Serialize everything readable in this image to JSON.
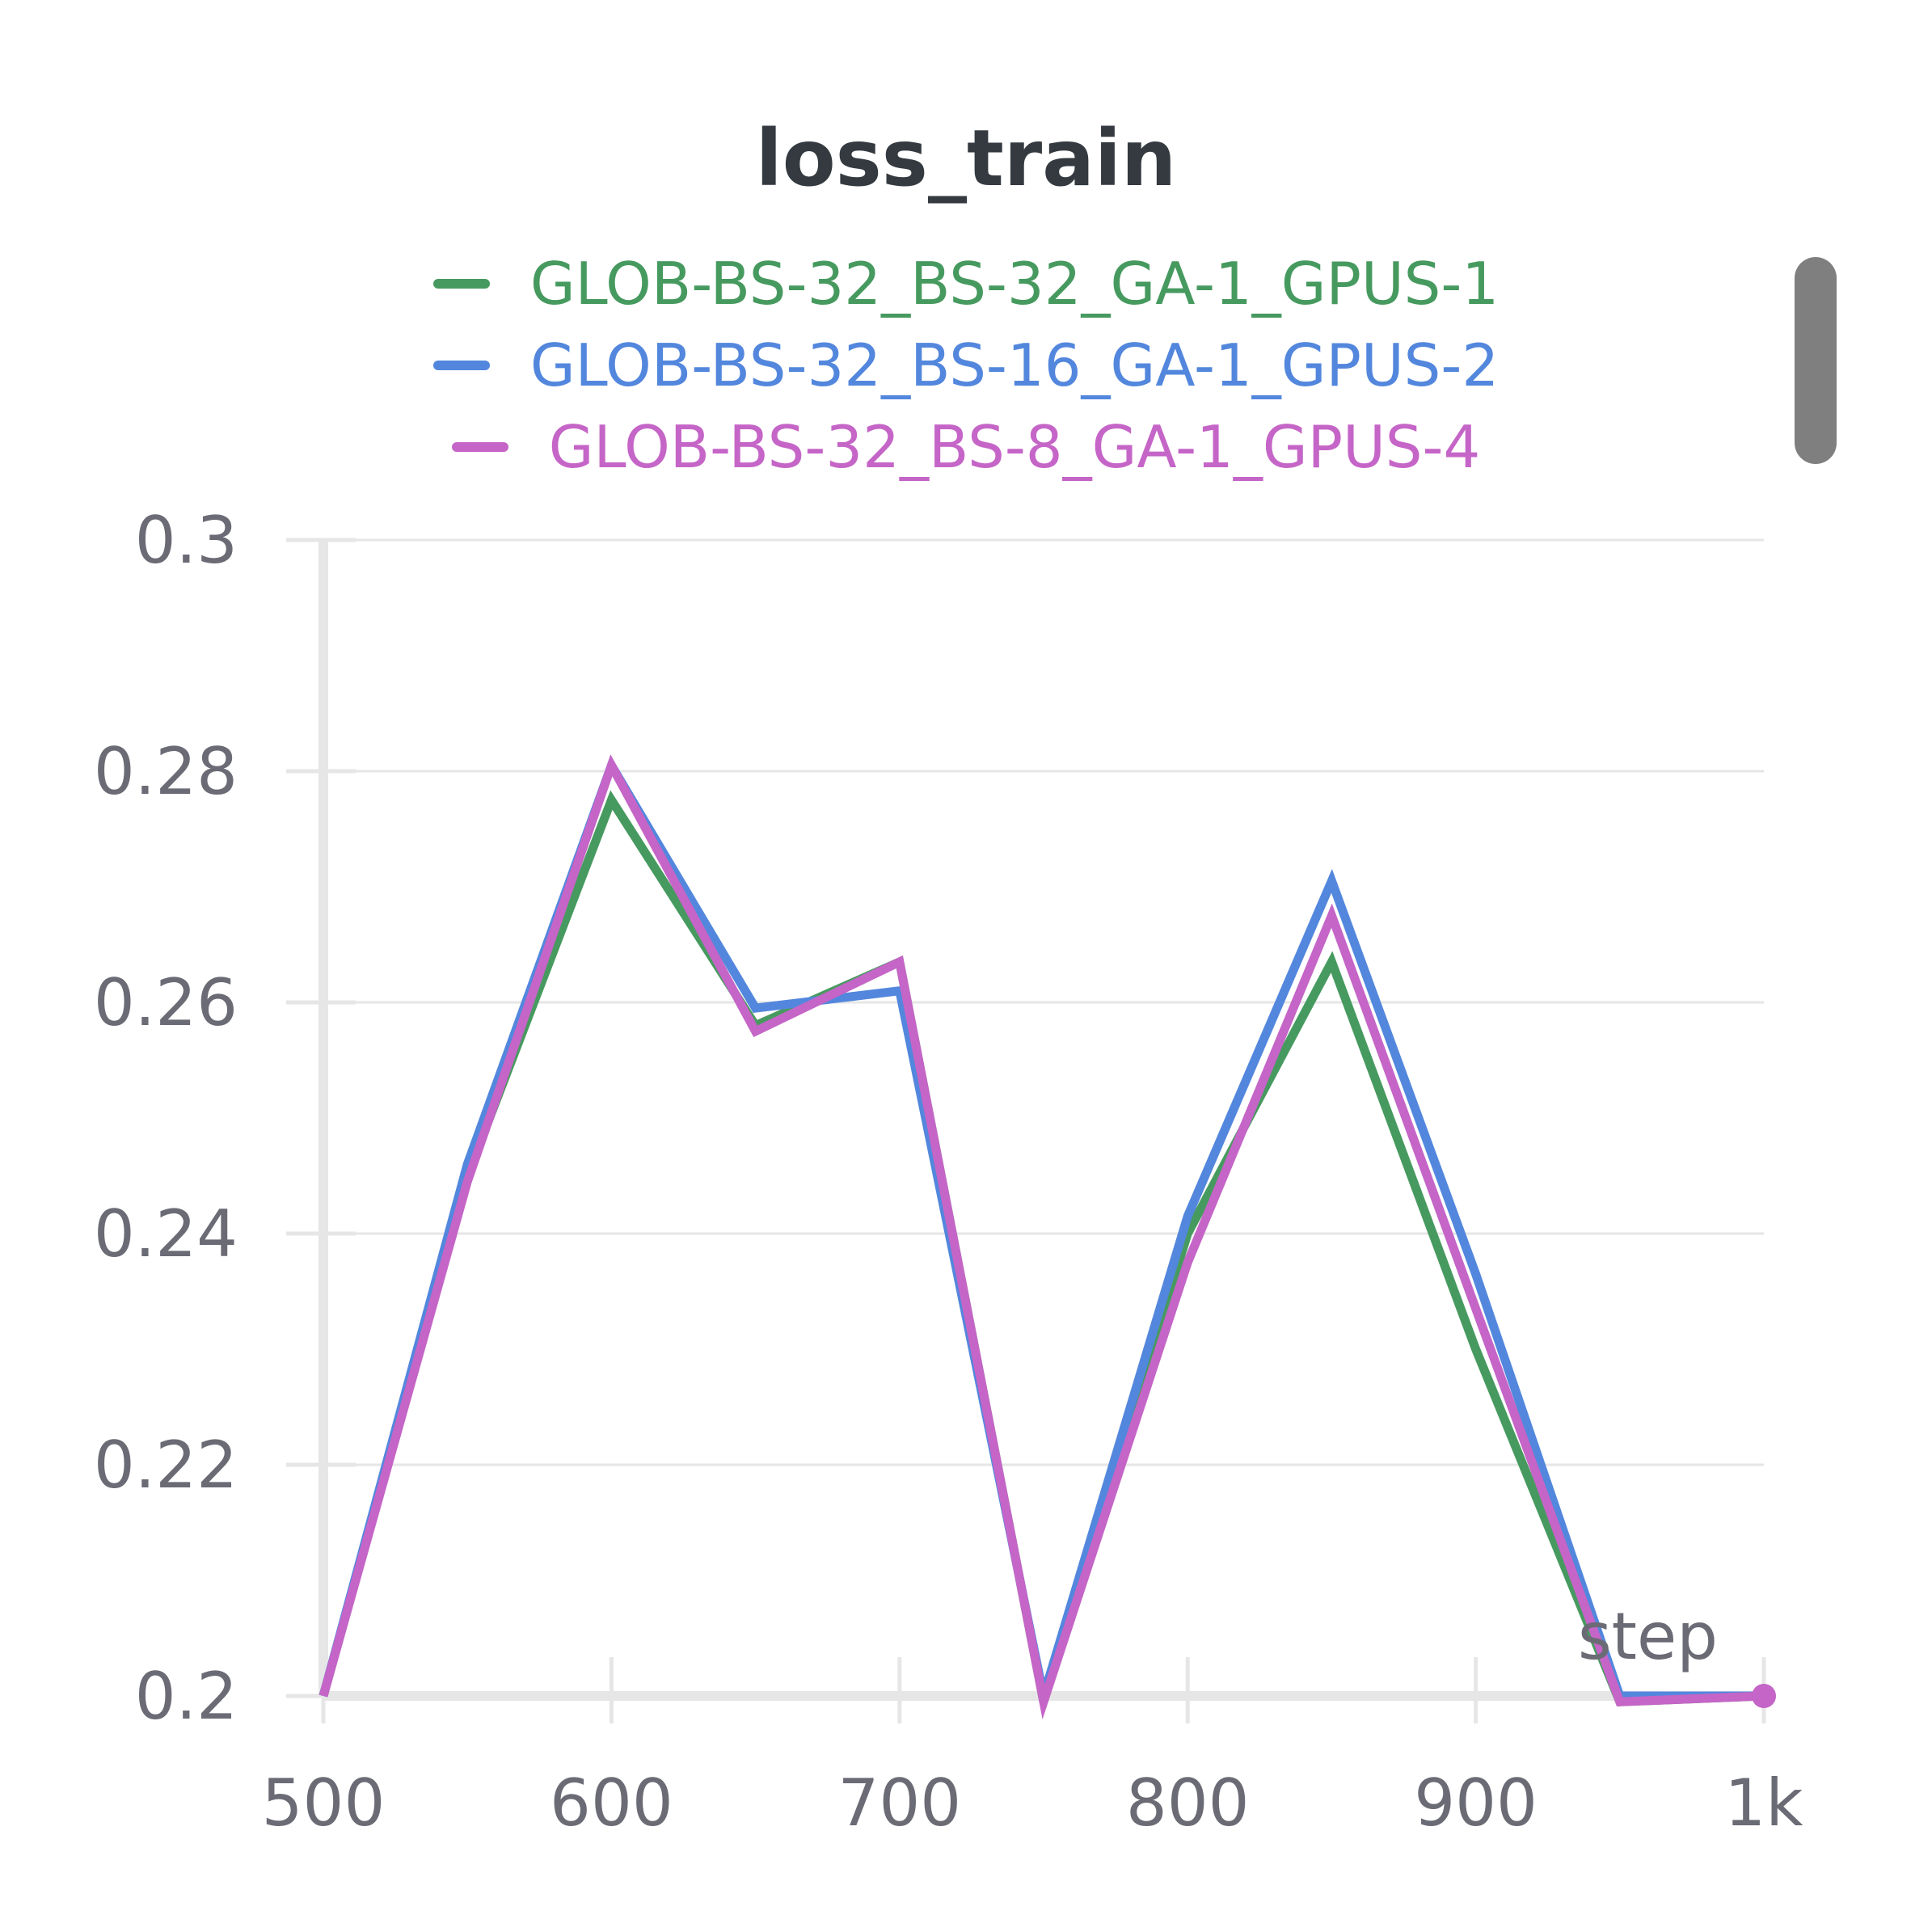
{
  "chart_data": {
    "type": "line",
    "title": "loss_train",
    "xlabel": "step",
    "ylabel": "",
    "xlim": [
      500,
      1000
    ],
    "ylim": [
      0.2,
      0.3
    ],
    "xticks": [
      500,
      600,
      700,
      800,
      900,
      1000
    ],
    "xtick_labels": [
      "500",
      "600",
      "700",
      "800",
      "900",
      "1k"
    ],
    "yticks": [
      0.2,
      0.22,
      0.24,
      0.26,
      0.28,
      0.3
    ],
    "ytick_labels": [
      "0.2",
      "0.22",
      "0.24",
      "0.26",
      "0.28",
      "0.3"
    ],
    "grid": true,
    "legend_position": "top",
    "x": [
      500,
      550,
      600,
      650,
      700,
      750,
      800,
      850,
      900,
      950,
      1000
    ],
    "series": [
      {
        "name": "GLOB-BS-32_BS-32_GA-1_GPUS-1",
        "color": "#479a5f",
        "values": [
          0.2,
          0.245,
          0.2775,
          0.258,
          0.2635,
          0.1995,
          0.24,
          0.2635,
          0.23,
          0.1995,
          0.2
        ]
      },
      {
        "name": "GLOB-BS-32_BS-16_GA-1_GPUS-2",
        "color": "#5387dd",
        "values": [
          0.2,
          0.246,
          0.2805,
          0.2595,
          0.261,
          0.2,
          0.2415,
          0.2705,
          0.2365,
          0.2,
          0.2
        ]
      },
      {
        "name": "GLOB-BS-32_BS-8_GA-1_GPUS-4",
        "color": "#c565c7",
        "values": [
          0.2,
          0.2445,
          0.2805,
          0.2575,
          0.2635,
          0.1995,
          0.2375,
          0.2675,
          0.2335,
          0.1995,
          0.2
        ]
      }
    ]
  }
}
